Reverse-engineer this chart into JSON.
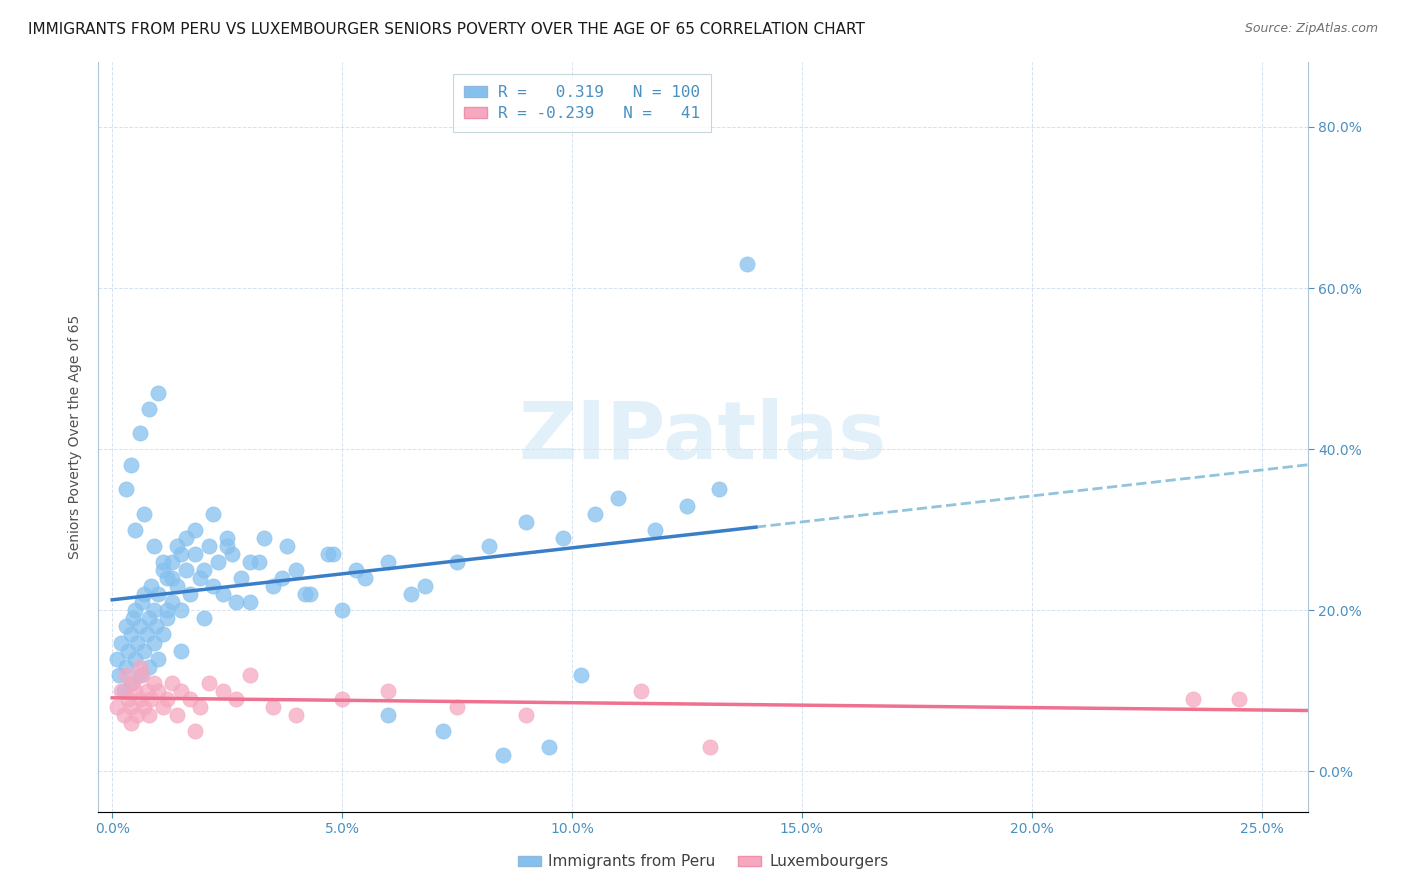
{
  "title": "IMMIGRANTS FROM PERU VS LUXEMBOURGER SENIORS POVERTY OVER THE AGE OF 65 CORRELATION CHART",
  "source": "Source: ZipAtlas.com",
  "xlabel_vals": [
    0.0,
    5.0,
    10.0,
    15.0,
    20.0,
    25.0
  ],
  "ylabel_vals": [
    0.0,
    20.0,
    40.0,
    60.0,
    80.0
  ],
  "ylabel_label": "Seniors Poverty Over the Age of 65",
  "xlim": [
    -0.3,
    26.0
  ],
  "ylim": [
    -5.0,
    88.0
  ],
  "blue_R": 0.319,
  "blue_N": 100,
  "pink_R": -0.239,
  "pink_N": 41,
  "blue_color": "#85C0EE",
  "pink_color": "#F5A8C0",
  "blue_line_color": "#3A7EC8",
  "pink_line_color": "#F07090",
  "dashed_line_color": "#90C4DC",
  "watermark_color": "#D0E8F5",
  "title_fontsize": 11,
  "axis_label_fontsize": 10,
  "tick_fontsize": 10,
  "source_fontsize": 9,
  "tick_color": "#4A90C0",
  "blue_scatter_x": [
    0.1,
    0.15,
    0.2,
    0.25,
    0.3,
    0.3,
    0.35,
    0.4,
    0.4,
    0.45,
    0.5,
    0.5,
    0.55,
    0.6,
    0.6,
    0.65,
    0.7,
    0.7,
    0.75,
    0.8,
    0.8,
    0.85,
    0.9,
    0.9,
    0.95,
    1.0,
    1.0,
    1.1,
    1.1,
    1.2,
    1.2,
    1.3,
    1.3,
    1.4,
    1.4,
    1.5,
    1.5,
    1.6,
    1.7,
    1.8,
    1.9,
    2.0,
    2.1,
    2.2,
    2.3,
    2.4,
    2.5,
    2.6,
    2.8,
    3.0,
    3.2,
    3.5,
    3.8,
    4.0,
    4.3,
    4.7,
    5.0,
    5.5,
    6.0,
    6.5,
    0.3,
    0.4,
    0.6,
    0.8,
    1.0,
    1.2,
    1.5,
    0.5,
    0.7,
    0.9,
    1.1,
    1.3,
    1.6,
    1.8,
    2.0,
    2.2,
    2.5,
    2.7,
    3.0,
    3.3,
    3.7,
    4.2,
    4.8,
    5.3,
    6.8,
    7.5,
    8.2,
    9.0,
    9.8,
    10.5,
    11.0,
    11.8,
    12.5,
    13.2,
    6.0,
    7.2,
    8.5,
    9.5,
    10.2,
    13.8
  ],
  "blue_scatter_y": [
    14.0,
    12.0,
    16.0,
    10.0,
    18.0,
    13.0,
    15.0,
    17.0,
    11.0,
    19.0,
    14.0,
    20.0,
    16.0,
    18.0,
    12.0,
    21.0,
    15.0,
    22.0,
    17.0,
    19.0,
    13.0,
    23.0,
    16.0,
    20.0,
    18.0,
    14.0,
    22.0,
    25.0,
    17.0,
    24.0,
    19.0,
    21.0,
    26.0,
    23.0,
    28.0,
    20.0,
    27.0,
    25.0,
    22.0,
    30.0,
    24.0,
    19.0,
    28.0,
    32.0,
    26.0,
    22.0,
    29.0,
    27.0,
    24.0,
    21.0,
    26.0,
    23.0,
    28.0,
    25.0,
    22.0,
    27.0,
    20.0,
    24.0,
    26.0,
    22.0,
    35.0,
    38.0,
    42.0,
    45.0,
    47.0,
    20.0,
    15.0,
    30.0,
    32.0,
    28.0,
    26.0,
    24.0,
    29.0,
    27.0,
    25.0,
    23.0,
    28.0,
    21.0,
    26.0,
    29.0,
    24.0,
    22.0,
    27.0,
    25.0,
    23.0,
    26.0,
    28.0,
    31.0,
    29.0,
    32.0,
    34.0,
    30.0,
    33.0,
    35.0,
    7.0,
    5.0,
    2.0,
    3.0,
    12.0,
    63.0
  ],
  "pink_scatter_x": [
    0.1,
    0.2,
    0.25,
    0.3,
    0.35,
    0.4,
    0.45,
    0.5,
    0.55,
    0.6,
    0.65,
    0.7,
    0.75,
    0.8,
    0.85,
    0.9,
    1.0,
    1.1,
    1.2,
    1.3,
    1.4,
    1.5,
    1.7,
    1.9,
    2.1,
    2.4,
    2.7,
    3.0,
    3.5,
    4.0,
    5.0,
    6.0,
    7.5,
    9.0,
    11.5,
    13.0,
    23.5,
    24.5,
    0.4,
    0.6,
    1.8
  ],
  "pink_scatter_y": [
    8.0,
    10.0,
    7.0,
    12.0,
    9.0,
    8.0,
    11.0,
    10.0,
    7.0,
    9.0,
    12.0,
    8.0,
    10.0,
    7.0,
    9.0,
    11.0,
    10.0,
    8.0,
    9.0,
    11.0,
    7.0,
    10.0,
    9.0,
    8.0,
    11.0,
    10.0,
    9.0,
    12.0,
    8.0,
    7.0,
    9.0,
    10.0,
    8.0,
    7.0,
    10.0,
    3.0,
    9.0,
    9.0,
    6.0,
    13.0,
    5.0
  ]
}
